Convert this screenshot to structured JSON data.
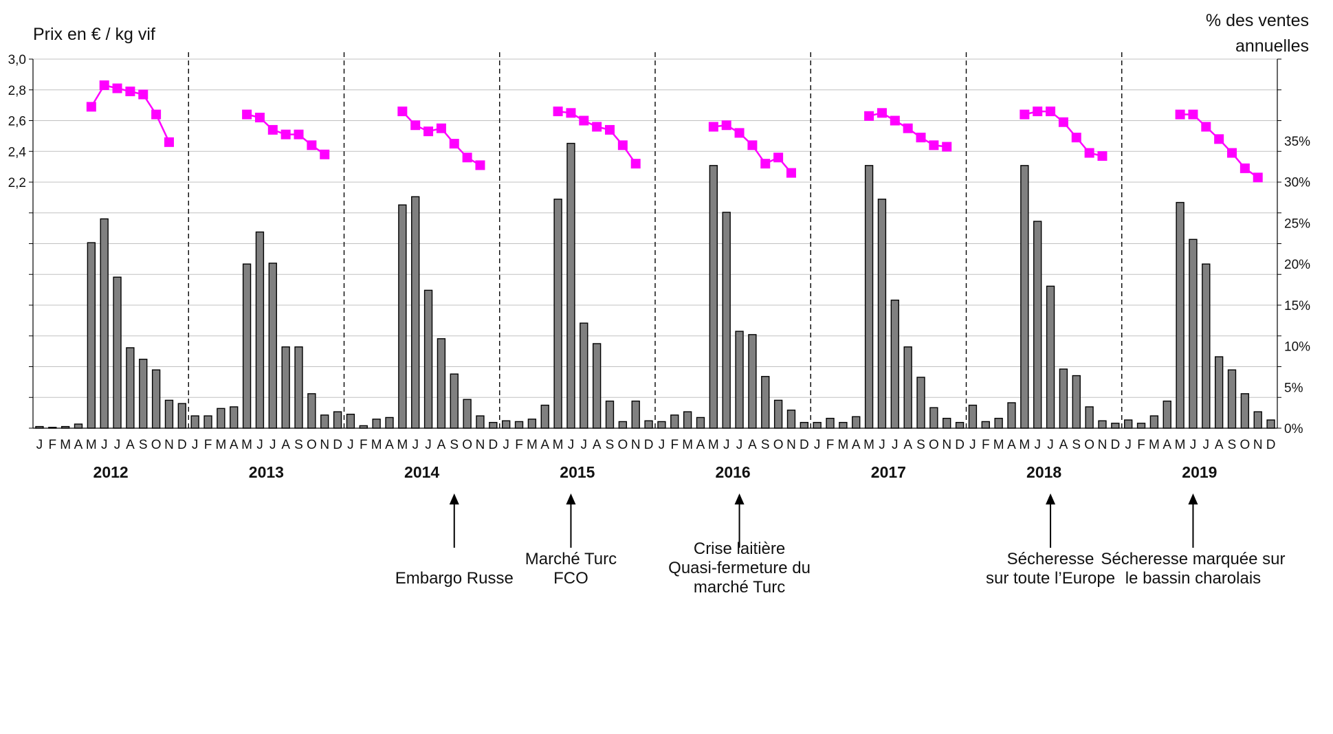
{
  "chart_data": {
    "type": "bar+line",
    "left_axis": {
      "title": "Prix en € / kg vif",
      "range": [
        2.2,
        3.0
      ],
      "ticks": [
        "3,0",
        "2,8",
        "2,6",
        "2,4",
        "2,2"
      ]
    },
    "right_axis": {
      "title_lines": [
        "% des ventes",
        "annuelles"
      ],
      "range": [
        0,
        35
      ],
      "ticks": [
        "35%",
        "30%",
        "25%",
        "20%",
        "15%",
        "10%",
        "5%",
        "0%"
      ]
    },
    "month_labels": [
      "J",
      "F",
      "M",
      "A",
      "M",
      "J",
      "J",
      "A",
      "S",
      "O",
      "N",
      "D"
    ],
    "grid": true,
    "years": [
      {
        "year": "2012",
        "sales_pct": [
          0.2,
          0.1,
          0.2,
          0.5,
          22.6,
          25.5,
          18.4,
          9.8,
          8.4,
          7.1,
          3.4,
          3.0
        ],
        "price": [
          null,
          null,
          null,
          null,
          2.69,
          2.83,
          2.81,
          2.79,
          2.77,
          2.64,
          2.46,
          null
        ]
      },
      {
        "year": "2013",
        "sales_pct": [
          1.5,
          1.5,
          2.4,
          2.6,
          20.0,
          23.9,
          20.1,
          9.9,
          9.9,
          4.2,
          1.6,
          2.0
        ],
        "price": [
          null,
          null,
          null,
          null,
          2.64,
          2.62,
          2.54,
          2.51,
          2.51,
          2.44,
          2.38,
          null
        ]
      },
      {
        "year": "2014",
        "sales_pct": [
          1.7,
          0.3,
          1.1,
          1.3,
          27.2,
          28.2,
          16.8,
          10.9,
          6.6,
          3.5,
          1.5,
          0.7
        ],
        "price": [
          null,
          null,
          null,
          null,
          2.66,
          2.57,
          2.53,
          2.55,
          2.45,
          2.36,
          2.31,
          null
        ]
      },
      {
        "year": "2015",
        "sales_pct": [
          0.9,
          0.8,
          1.1,
          2.8,
          27.9,
          34.7,
          12.8,
          10.3,
          3.3,
          0.8,
          3.3,
          0.9
        ],
        "price": [
          null,
          null,
          null,
          null,
          2.66,
          2.65,
          2.6,
          2.56,
          2.54,
          2.44,
          2.32,
          null
        ]
      },
      {
        "year": "2016",
        "sales_pct": [
          0.8,
          1.6,
          2.0,
          1.3,
          32.0,
          26.3,
          11.8,
          11.4,
          6.3,
          3.4,
          2.2,
          0.7
        ],
        "price": [
          null,
          null,
          null,
          null,
          2.56,
          2.57,
          2.52,
          2.44,
          2.32,
          2.36,
          2.26,
          null
        ]
      },
      {
        "year": "2017",
        "sales_pct": [
          0.7,
          1.2,
          0.7,
          1.4,
          32.0,
          27.9,
          15.6,
          9.9,
          6.2,
          2.5,
          1.2,
          0.7
        ],
        "price": [
          null,
          null,
          null,
          null,
          2.63,
          2.65,
          2.6,
          2.55,
          2.49,
          2.44,
          2.43,
          null
        ]
      },
      {
        "year": "2018",
        "sales_pct": [
          2.8,
          0.8,
          1.2,
          3.1,
          32.0,
          25.2,
          17.3,
          7.2,
          6.4,
          2.6,
          0.9,
          0.6
        ],
        "price": [
          null,
          null,
          null,
          null,
          2.64,
          2.66,
          2.66,
          2.59,
          2.49,
          2.39,
          2.37,
          null
        ]
      },
      {
        "year": "2019",
        "sales_pct": [
          1.0,
          0.6,
          1.5,
          3.3,
          27.5,
          23.0,
          20.0,
          8.7,
          7.1,
          4.2,
          2.0,
          1.0
        ],
        "price": [
          null,
          null,
          null,
          null,
          2.64,
          2.64,
          2.56,
          2.48,
          2.39,
          2.29,
          2.23,
          null
        ]
      }
    ],
    "annotations": [
      {
        "year": "2014",
        "month_index": 8,
        "lines": [
          "Embargo Russe"
        ]
      },
      {
        "year": "2015",
        "month_index": 5,
        "lines": [
          "Marché Turc",
          "FCO"
        ]
      },
      {
        "year": "2016",
        "month_index": 6,
        "lines": [
          "Crise laitière",
          "Quasi-fermeture du",
          "marché Turc"
        ]
      },
      {
        "year": "2018",
        "month_index": 6,
        "lines": [
          "Sécheresse",
          "sur toute l’Europe"
        ]
      },
      {
        "year": "2019",
        "month_index": 5,
        "lines": [
          "Sécheresse marquée sur",
          "le bassin charolais"
        ]
      }
    ],
    "colors": {
      "bar_fill": "#808080",
      "bar_stroke": "#000000",
      "price_line": "#ff00ff",
      "gridline": "#c0c0c0",
      "separator": "#000000"
    }
  }
}
